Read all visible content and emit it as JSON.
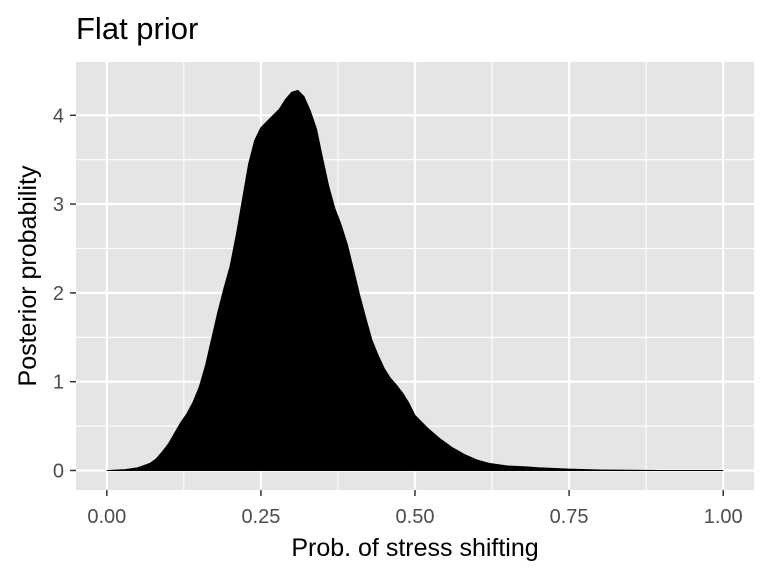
{
  "chart_data": {
    "type": "area",
    "title": "Flat prior",
    "xlabel": "Prob. of stress shifting",
    "ylabel": "Posterior probability",
    "xlim": [
      -0.05,
      1.05
    ],
    "ylim": [
      -0.22,
      4.6
    ],
    "xticks": [
      0.0,
      0.25,
      0.5,
      0.75,
      1.0
    ],
    "xtick_labels": [
      "0.00",
      "0.25",
      "0.50",
      "0.75",
      "1.00"
    ],
    "yticks": [
      0,
      1,
      2,
      3,
      4
    ],
    "ytick_labels": [
      "0",
      "1",
      "2",
      "3",
      "4"
    ],
    "grid": true,
    "legend": "none",
    "colors": {
      "panel": "#E5E5E5",
      "grid": "#FFFFFF",
      "fill": "#000000",
      "tick": "#333333"
    },
    "series": [
      {
        "x": [
          0.0,
          0.03,
          0.05,
          0.07,
          0.08,
          0.09,
          0.1,
          0.11,
          0.12,
          0.13,
          0.14,
          0.15,
          0.16,
          0.17,
          0.18,
          0.19,
          0.2,
          0.21,
          0.22,
          0.23,
          0.24,
          0.25,
          0.26,
          0.27,
          0.28,
          0.29,
          0.3,
          0.31,
          0.32,
          0.33,
          0.34,
          0.35,
          0.36,
          0.37,
          0.38,
          0.39,
          0.4,
          0.41,
          0.42,
          0.43,
          0.44,
          0.45,
          0.46,
          0.47,
          0.48,
          0.49,
          0.5,
          0.52,
          0.54,
          0.56,
          0.58,
          0.6,
          0.62,
          0.65,
          0.68,
          0.7,
          0.75,
          0.8,
          0.9,
          1.0
        ],
        "y": [
          0.0,
          0.01,
          0.03,
          0.08,
          0.13,
          0.21,
          0.3,
          0.42,
          0.54,
          0.64,
          0.77,
          0.94,
          1.18,
          1.48,
          1.78,
          2.05,
          2.3,
          2.65,
          3.05,
          3.45,
          3.72,
          3.86,
          3.93,
          4.0,
          4.07,
          4.18,
          4.26,
          4.28,
          4.21,
          4.05,
          3.85,
          3.52,
          3.2,
          2.95,
          2.77,
          2.55,
          2.27,
          1.98,
          1.72,
          1.47,
          1.3,
          1.15,
          1.04,
          0.96,
          0.87,
          0.76,
          0.62,
          0.48,
          0.36,
          0.26,
          0.18,
          0.12,
          0.08,
          0.05,
          0.04,
          0.03,
          0.015,
          0.005,
          0.0,
          0.0
        ]
      }
    ]
  }
}
